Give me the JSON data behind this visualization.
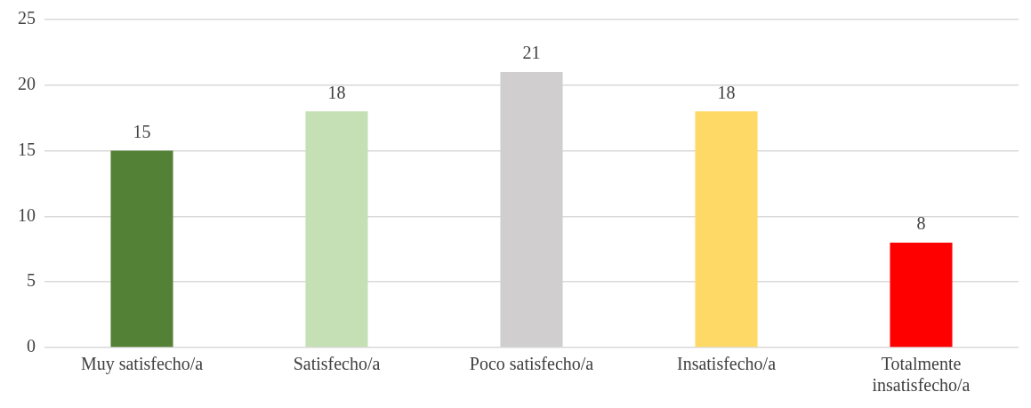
{
  "chart_data": {
    "type": "bar",
    "categories": [
      "Muy satisfecho/a",
      "Satisfecho/a",
      "Poco satisfecho/a",
      "Insatisfecho/a",
      "Totalmente insatisfecho/a"
    ],
    "values": [
      15,
      18,
      21,
      18,
      8
    ],
    "colors": [
      "#538135",
      "#c5e0b4",
      "#d0cece",
      "#ffd966",
      "#ff0000"
    ],
    "ylim": [
      0,
      25
    ],
    "yticks": [
      0,
      5,
      10,
      15,
      20,
      25
    ],
    "grid": "y",
    "data_labels": true
  }
}
